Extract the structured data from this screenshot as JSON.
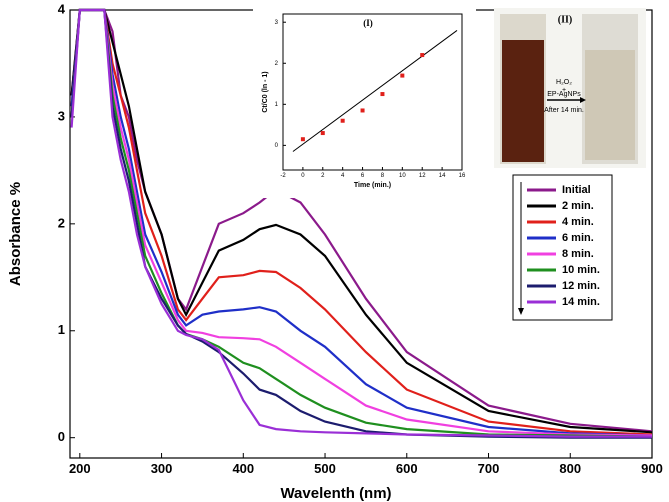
{
  "chart_data": [
    {
      "type": "line",
      "x_label": "Wavelenth (nm)",
      "y_label": "Absorbance %",
      "x": [
        190,
        200,
        210,
        230,
        240,
        250,
        260,
        270,
        280,
        300,
        320,
        330,
        350,
        370,
        400,
        420,
        440,
        470,
        500,
        550,
        600,
        700,
        800,
        900
      ],
      "series": [
        {
          "name": "Initial",
          "color": "#8b1a8b",
          "values": [
            3.2,
            4,
            4,
            4,
            3.8,
            3.2,
            3.0,
            2.6,
            2.3,
            1.9,
            1.3,
            1.2,
            1.6,
            2.0,
            2.1,
            2.2,
            2.32,
            2.2,
            1.9,
            1.3,
            0.8,
            0.3,
            0.13,
            0.06
          ]
        },
        {
          "name": "2 min.",
          "color": "#000000",
          "values": [
            3.2,
            4,
            4,
            4,
            3.7,
            3.4,
            3.1,
            2.7,
            2.3,
            1.9,
            1.3,
            1.15,
            1.45,
            1.75,
            1.85,
            1.95,
            1.99,
            1.9,
            1.7,
            1.15,
            0.7,
            0.25,
            0.1,
            0.05
          ]
        },
        {
          "name": "4 min.",
          "color": "#e0201b",
          "values": [
            3.1,
            4,
            4,
            4,
            3.5,
            3.2,
            2.9,
            2.5,
            2.1,
            1.7,
            1.2,
            1.1,
            1.3,
            1.5,
            1.52,
            1.56,
            1.55,
            1.4,
            1.2,
            0.8,
            0.45,
            0.15,
            0.06,
            0.03
          ]
        },
        {
          "name": "6 min.",
          "color": "#1f2fc8",
          "values": [
            3.1,
            4,
            4,
            4,
            3.4,
            3.0,
            2.7,
            2.3,
            1.9,
            1.55,
            1.15,
            1.05,
            1.15,
            1.18,
            1.2,
            1.22,
            1.18,
            1.0,
            0.85,
            0.5,
            0.28,
            0.1,
            0.04,
            0.02
          ]
        },
        {
          "name": "8 min.",
          "color": "#f040e0",
          "values": [
            3.0,
            4,
            4,
            4,
            3.3,
            2.9,
            2.6,
            2.2,
            1.8,
            1.45,
            1.1,
            1.0,
            0.98,
            0.94,
            0.93,
            0.92,
            0.85,
            0.7,
            0.55,
            0.3,
            0.17,
            0.06,
            0.03,
            0.02
          ]
        },
        {
          "name": "10 min.",
          "color": "#1f8f1f",
          "values": [
            3.0,
            4,
            4,
            4,
            3.2,
            2.8,
            2.5,
            2.1,
            1.7,
            1.35,
            1.05,
            0.97,
            0.92,
            0.85,
            0.7,
            0.65,
            0.55,
            0.4,
            0.28,
            0.14,
            0.08,
            0.03,
            0.02,
            0.01
          ]
        },
        {
          "name": "12 min.",
          "color": "#1c1c6e",
          "values": [
            3.0,
            4,
            4,
            4,
            3.1,
            2.7,
            2.4,
            2.0,
            1.6,
            1.3,
            1.05,
            0.97,
            0.9,
            0.8,
            0.6,
            0.45,
            0.4,
            0.25,
            0.15,
            0.06,
            0.03,
            0.01,
            0.0,
            0.0
          ]
        },
        {
          "name": "14 min.",
          "color": "#9a2fd6",
          "values": [
            2.9,
            4,
            4,
            4,
            3.0,
            2.6,
            2.3,
            1.9,
            1.6,
            1.25,
            1.0,
            0.96,
            0.92,
            0.82,
            0.35,
            0.12,
            0.08,
            0.06,
            0.05,
            0.04,
            0.03,
            0.02,
            0.01,
            0.01
          ]
        }
      ],
      "xlim": [
        188,
        900
      ],
      "ylim": [
        -0.19,
        4
      ],
      "xticks": [
        200,
        300,
        400,
        500,
        600,
        700,
        800,
        900
      ],
      "yticks": [
        0,
        1,
        2,
        3,
        4
      ]
    },
    {
      "type": "scatter",
      "title": "(I)",
      "x_label": "Time (min.)",
      "y_label": "Ct/C0 (ln - 1)",
      "x": [
        0,
        2,
        4,
        6,
        8,
        10,
        12
      ],
      "values": [
        0.15,
        0.3,
        0.6,
        0.85,
        1.25,
        1.7,
        2.2
      ],
      "color": "#e0201b",
      "fit": {
        "x": [
          -1,
          15.5
        ],
        "y": [
          -0.15,
          2.8
        ]
      },
      "xlim": [
        -2,
        16
      ],
      "ylim": [
        -0.6,
        3.2
      ],
      "xticks": [
        -2,
        0,
        2,
        4,
        6,
        8,
        10,
        12,
        14,
        16
      ],
      "yticks": [
        0,
        1,
        2,
        3
      ]
    }
  ],
  "photo": {
    "label": "(II)",
    "reagent": "H₂O₂",
    "plus": "+",
    "catalyst": "EP-AgNPs",
    "time": "After 14 min."
  }
}
